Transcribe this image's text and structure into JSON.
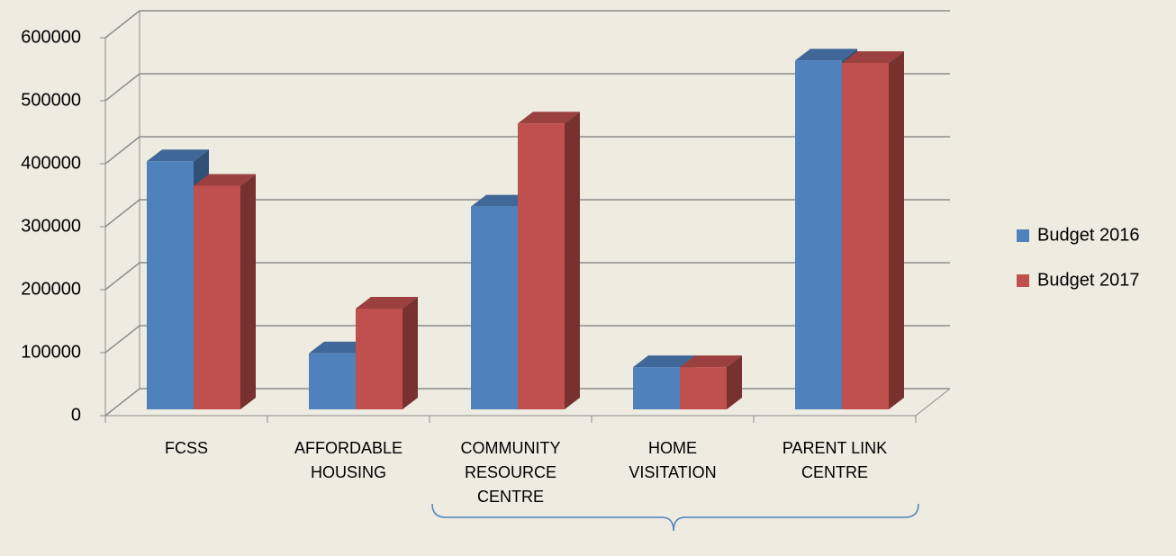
{
  "chart_data": {
    "type": "bar3d",
    "categories": [
      "FCSS",
      "AFFORDABLE HOUSING",
      "COMMUNITY RESOURCE CENTRE",
      "HOME VISITATION",
      "PARENT LINK CENTRE"
    ],
    "series": [
      {
        "name": "Budget 2016",
        "color": "#4f81bd",
        "values": [
          394000,
          89000,
          322000,
          67000,
          554000
        ]
      },
      {
        "name": "Budget 2017",
        "color": "#c0504d",
        "values": [
          355000,
          160000,
          454000,
          67000,
          550000
        ]
      }
    ],
    "ylim": [
      0,
      600000
    ],
    "yticks": [
      0,
      100000,
      200000,
      300000,
      400000,
      500000,
      600000
    ],
    "grid": true,
    "legend": "right"
  }
}
